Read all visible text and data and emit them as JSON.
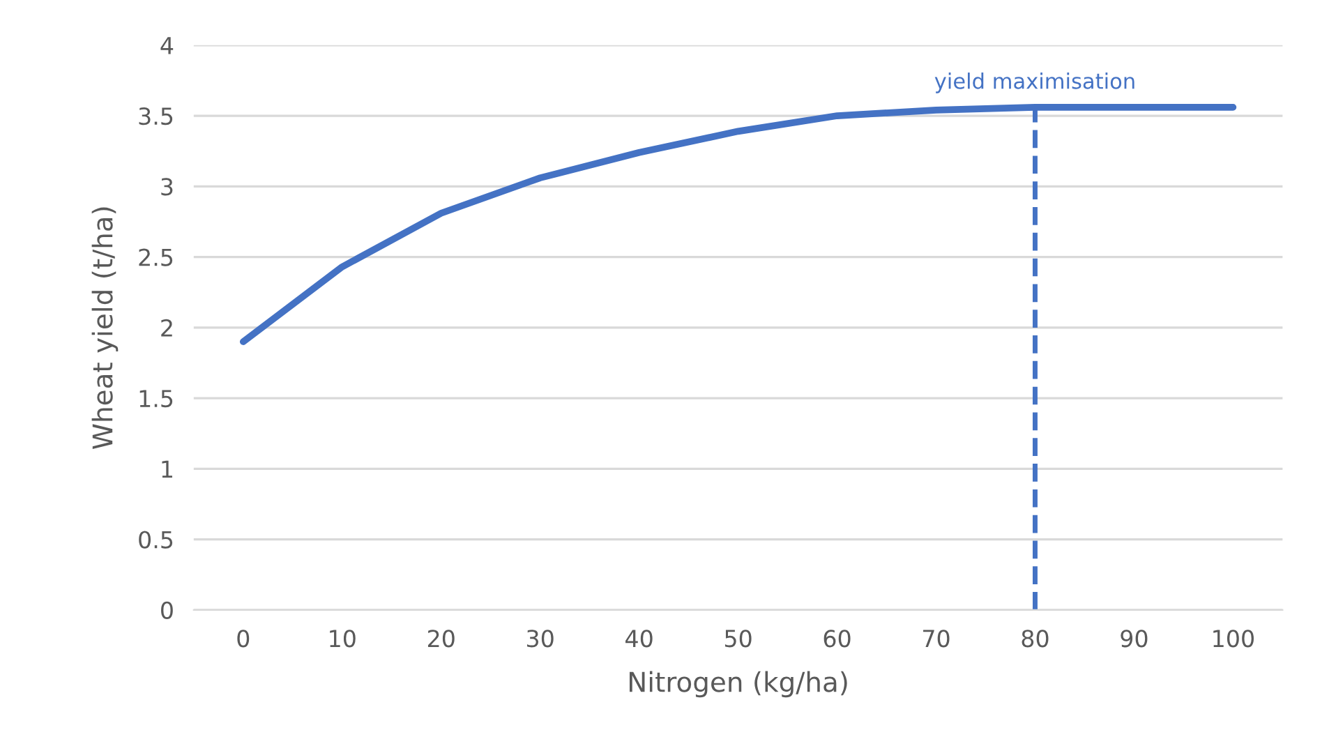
{
  "chart_data": {
    "type": "line",
    "xlabel": "Nitrogen (kg/ha)",
    "ylabel": "Wheat yield (t/ha)",
    "categories": [
      "0",
      "10",
      "20",
      "30",
      "40",
      "50",
      "60",
      "70",
      "80",
      "90",
      "100"
    ],
    "series": [
      {
        "color": "#4472c4",
        "values": [
          1.9,
          2.43,
          2.81,
          3.06,
          3.24,
          3.39,
          3.5,
          3.54,
          3.56,
          3.56,
          3.56
        ]
      }
    ],
    "ylim": [
      0,
      4
    ],
    "yticks": [
      0,
      0.5,
      1,
      1.5,
      2,
      2.5,
      3,
      3.5,
      4
    ],
    "grid": "y",
    "marker": "none",
    "line_style": "solid",
    "ref_lines": [
      {
        "axis": "x",
        "value": "80",
        "label": "yield maximisation",
        "color": "#4472c4",
        "line_style": "dashed"
      }
    ]
  }
}
